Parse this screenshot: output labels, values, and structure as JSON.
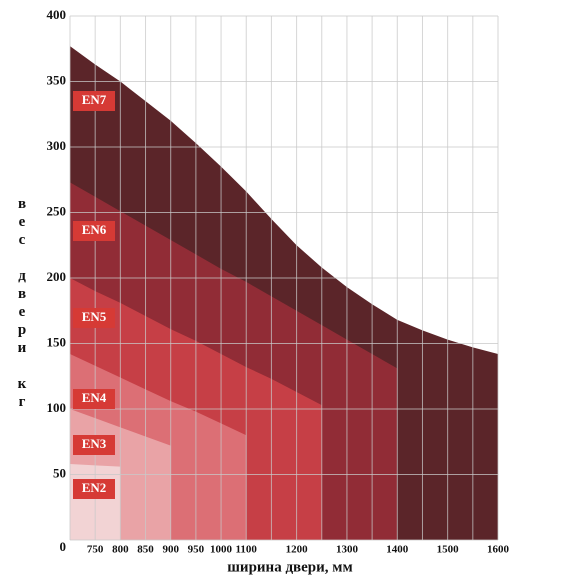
{
  "chart_data": {
    "type": "area",
    "x_label": "ширина двери, мм",
    "y_label": "вес двери кг",
    "categories": [
      null,
      "750",
      "800",
      "850",
      "900",
      "950",
      "1000",
      "1100",
      null,
      "1200",
      null,
      "1300",
      null,
      "1400",
      null,
      "1500",
      null,
      "1600"
    ],
    "ylim": [
      0,
      400
    ],
    "yticks": [
      0,
      50,
      100,
      150,
      200,
      250,
      300,
      350,
      400
    ],
    "grid": true,
    "series": [
      {
        "name": "EN2",
        "color": "#f2d3d4",
        "values": [
          58,
          57,
          56,
          null,
          null,
          null,
          null,
          null,
          null,
          null,
          null,
          null,
          null,
          null,
          null,
          null,
          null,
          null
        ]
      },
      {
        "name": "EN3",
        "color": "#e9a3a6",
        "values": [
          100,
          93,
          86,
          79,
          72,
          null,
          null,
          null,
          null,
          null,
          null,
          null,
          null,
          null,
          null,
          null,
          null,
          null
        ]
      },
      {
        "name": "EN4",
        "color": "#dc6f75",
        "values": [
          142,
          133,
          124,
          115,
          106,
          98,
          89,
          80,
          null,
          null,
          null,
          null,
          null,
          null,
          null,
          null,
          null,
          null
        ]
      },
      {
        "name": "EN5",
        "color": "#c63f46",
        "values": [
          200,
          190,
          181,
          171,
          161,
          152,
          142,
          132,
          123,
          113,
          103,
          null,
          null,
          null,
          null,
          null,
          null,
          null
        ]
      },
      {
        "name": "EN6",
        "color": "#912c36",
        "values": [
          273,
          262,
          251,
          240,
          229,
          218,
          207,
          197,
          186,
          175,
          164,
          153,
          142,
          131,
          null,
          null,
          null,
          null
        ]
      },
      {
        "name": "EN7",
        "color": "#5b2529",
        "values": [
          377,
          363,
          350,
          335,
          320,
          303,
          285,
          266,
          245,
          225,
          208,
          193,
          180,
          168,
          160,
          153,
          147,
          142
        ]
      }
    ]
  }
}
